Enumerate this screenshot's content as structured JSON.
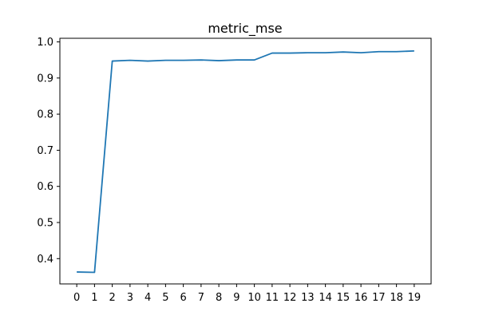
{
  "chart_data": {
    "type": "line",
    "title": "metric_mse",
    "xlabel": "",
    "ylabel": "",
    "x": [
      0,
      1,
      2,
      3,
      4,
      5,
      6,
      7,
      8,
      9,
      10,
      11,
      12,
      13,
      14,
      15,
      16,
      17,
      18,
      19
    ],
    "xlim": [
      -0.95,
      19.95
    ],
    "ylim": [
      0.33,
      1.01
    ],
    "xticks": [
      "0",
      "1",
      "2",
      "3",
      "4",
      "5",
      "6",
      "7",
      "8",
      "9",
      "10",
      "11",
      "12",
      "13",
      "14",
      "15",
      "16",
      "17",
      "18",
      "19"
    ],
    "yticks": [
      "0.4",
      "0.5",
      "0.6",
      "0.7",
      "0.8",
      "0.9",
      "1.0"
    ],
    "ytick_values": [
      0.4,
      0.5,
      0.6,
      0.7,
      0.8,
      0.9,
      1.0
    ],
    "grid": false,
    "series": [
      {
        "color": "#1f77b4",
        "values": [
          0.363,
          0.362,
          0.947,
          0.949,
          0.947,
          0.949,
          0.949,
          0.95,
          0.948,
          0.95,
          0.95,
          0.969,
          0.969,
          0.97,
          0.97,
          0.972,
          0.97,
          0.973,
          0.973,
          0.975
        ]
      }
    ]
  }
}
